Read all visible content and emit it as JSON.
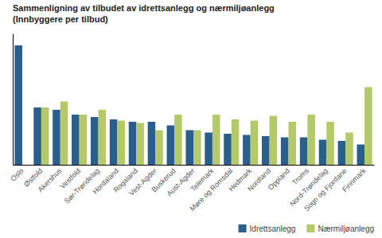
{
  "chart_data": {
    "type": "bar",
    "title": "Sammenligning av tilbudet av idrettsanlegg og nærmiljøanlegg\n(Innbyggere per tilbud)",
    "categories": [
      "Oslo",
      "Østfold",
      "Akershus",
      "Vestfold",
      "Sør-Trøndelag",
      "Hordaland",
      "Rogaland",
      "Vest-Agder",
      "Buskerud",
      "Aust-Agder",
      "Telemark",
      "Møre og Romsdal",
      "Hedmark",
      "Nordland",
      "Oppland",
      "Troms",
      "Nord-Trøndelag",
      "Sogn og Fjordane",
      "Finnmark"
    ],
    "series": [
      {
        "name": "Idrettsanlegg",
        "color": "#2a5e8c",
        "values": [
          100,
          48,
          46,
          42,
          40,
          38,
          36,
          36,
          33,
          29,
          27,
          26,
          25,
          24,
          23,
          23,
          21,
          20,
          17
        ]
      },
      {
        "name": "Nærmiljøanlegg",
        "color": "#b5c96a",
        "values": [
          0,
          48,
          53,
          42,
          46,
          37,
          35,
          29,
          42,
          29,
          42,
          38,
          37,
          41,
          36,
          42,
          36,
          27,
          65
        ]
      }
    ],
    "ylim": [
      0,
      110
    ],
    "grid": false,
    "legend": "lower right",
    "tick_labels": "x"
  }
}
